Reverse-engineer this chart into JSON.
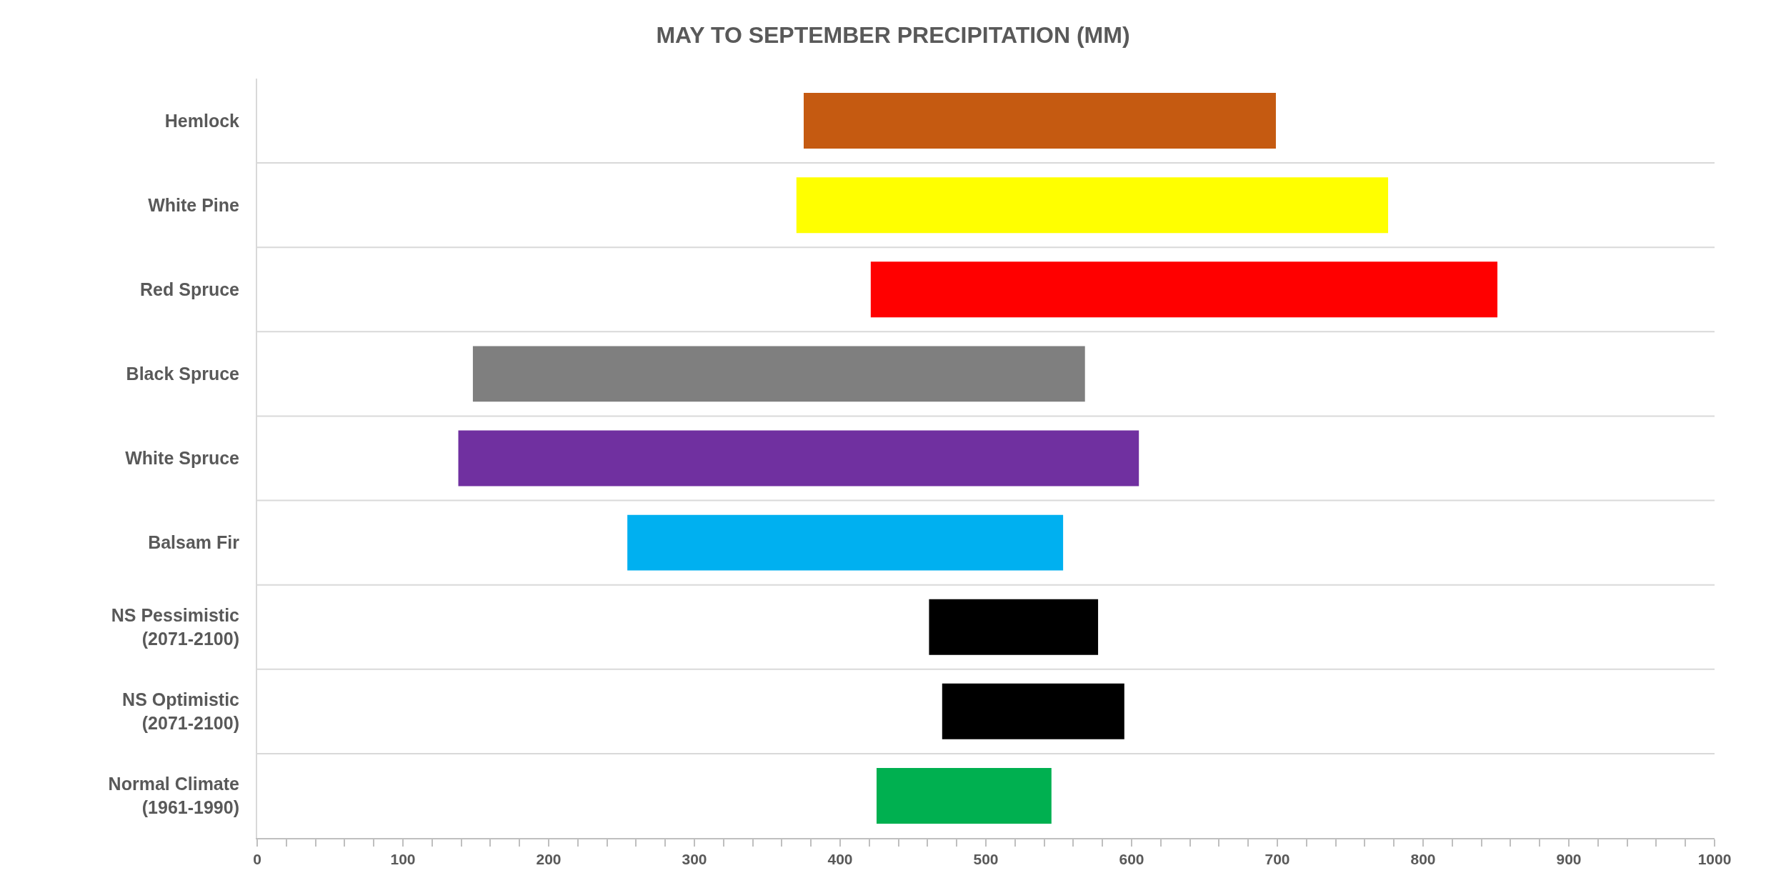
{
  "chart_data": {
    "type": "bar",
    "orientation": "horizontal",
    "title": "MAY TO SEPTEMBER PRECIPITATION (MM)",
    "categories": [
      "Hemlock",
      "White Pine",
      "Red Spruce",
      "Black Spruce",
      "White Spruce",
      "Balsam Fir",
      "NS Pessimistic\n(2071-2100)",
      "NS Optimistic\n(2071-2100)",
      "Normal Climate\n(1961-1990)"
    ],
    "base": [
      375,
      370,
      421,
      148,
      138,
      254,
      461,
      470,
      425
    ],
    "values": [
      324,
      406,
      430,
      420,
      467,
      299,
      116,
      125,
      120
    ],
    "colors": [
      "#c55a11",
      "#ffff00",
      "#ff0000",
      "#7f7f7f",
      "#7030a0",
      "#00b0f0",
      "#000000",
      "#000000",
      "#00b050"
    ],
    "xlim": [
      0,
      1000
    ],
    "xticks": [
      0,
      {
        "value": 20,
        "label": null
      },
      {
        "value": 40,
        "label": null
      },
      {
        "value": 60,
        "label": null
      },
      {
        "value": 80,
        "label": null
      },
      100,
      {
        "value": 120,
        "label": null
      },
      {
        "value": 140,
        "label": null
      },
      {
        "value": 160,
        "label": null
      },
      {
        "value": 180,
        "label": null
      },
      200,
      {
        "value": 220,
        "label": null
      },
      {
        "value": 240,
        "label": null
      },
      {
        "value": 260,
        "label": null
      },
      {
        "value": 280,
        "label": null
      },
      300,
      {
        "value": 320,
        "label": null
      },
      {
        "value": 340,
        "label": null
      },
      {
        "value": 360,
        "label": null
      },
      {
        "value": 380,
        "label": null
      },
      400,
      {
        "value": 420,
        "label": null
      },
      {
        "value": 440,
        "label": null
      },
      {
        "value": 460,
        "label": null
      },
      {
        "value": 480,
        "label": null
      },
      500,
      {
        "value": 520,
        "label": null
      },
      {
        "value": 540,
        "label": null
      },
      {
        "value": 560,
        "label": null
      },
      {
        "value": 580,
        "label": null
      },
      600,
      {
        "value": 620,
        "label": null
      },
      {
        "value": 640,
        "label": null
      },
      {
        "value": 660,
        "label": null
      },
      {
        "value": 680,
        "label": null
      },
      700,
      {
        "value": 720,
        "label": null
      },
      {
        "value": 740,
        "label": null
      },
      {
        "value": 760,
        "label": null
      },
      {
        "value": 780,
        "label": null
      },
      800,
      {
        "value": 820,
        "label": null
      },
      {
        "value": 840,
        "label": null
      },
      {
        "value": 860,
        "label": null
      },
      {
        "value": 880,
        "label": null
      },
      900,
      {
        "value": 920,
        "label": null
      },
      {
        "value": 940,
        "label": null
      },
      {
        "value": 960,
        "label": null
      },
      {
        "value": 980,
        "label": null
      },
      1000
    ],
    "grid": "y"
  }
}
